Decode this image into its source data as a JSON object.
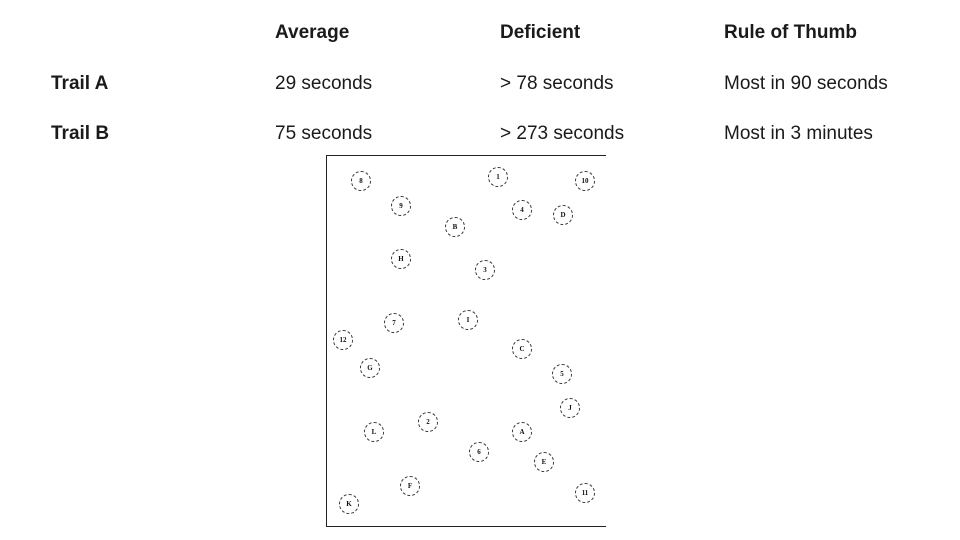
{
  "table": {
    "headers": [
      "Average",
      "Deficient",
      "Rule of Thumb"
    ],
    "rows": [
      {
        "label": "Trail A",
        "average": "29 seconds",
        "deficient": "> 78 seconds",
        "rule": "Most in 90 seconds"
      },
      {
        "label": "Trail B",
        "average": "75 seconds",
        "deficient": "> 273 seconds",
        "rule": "Most in 3 minutes"
      }
    ]
  },
  "trail_figure": {
    "labels": [
      "8",
      "1",
      "10",
      "9",
      "4",
      "D",
      "B",
      "H",
      "3",
      "7",
      "I",
      "12",
      "C",
      "G",
      "5",
      "J",
      "2",
      "L",
      "A",
      "6",
      "E",
      "F",
      "11",
      "K"
    ]
  }
}
